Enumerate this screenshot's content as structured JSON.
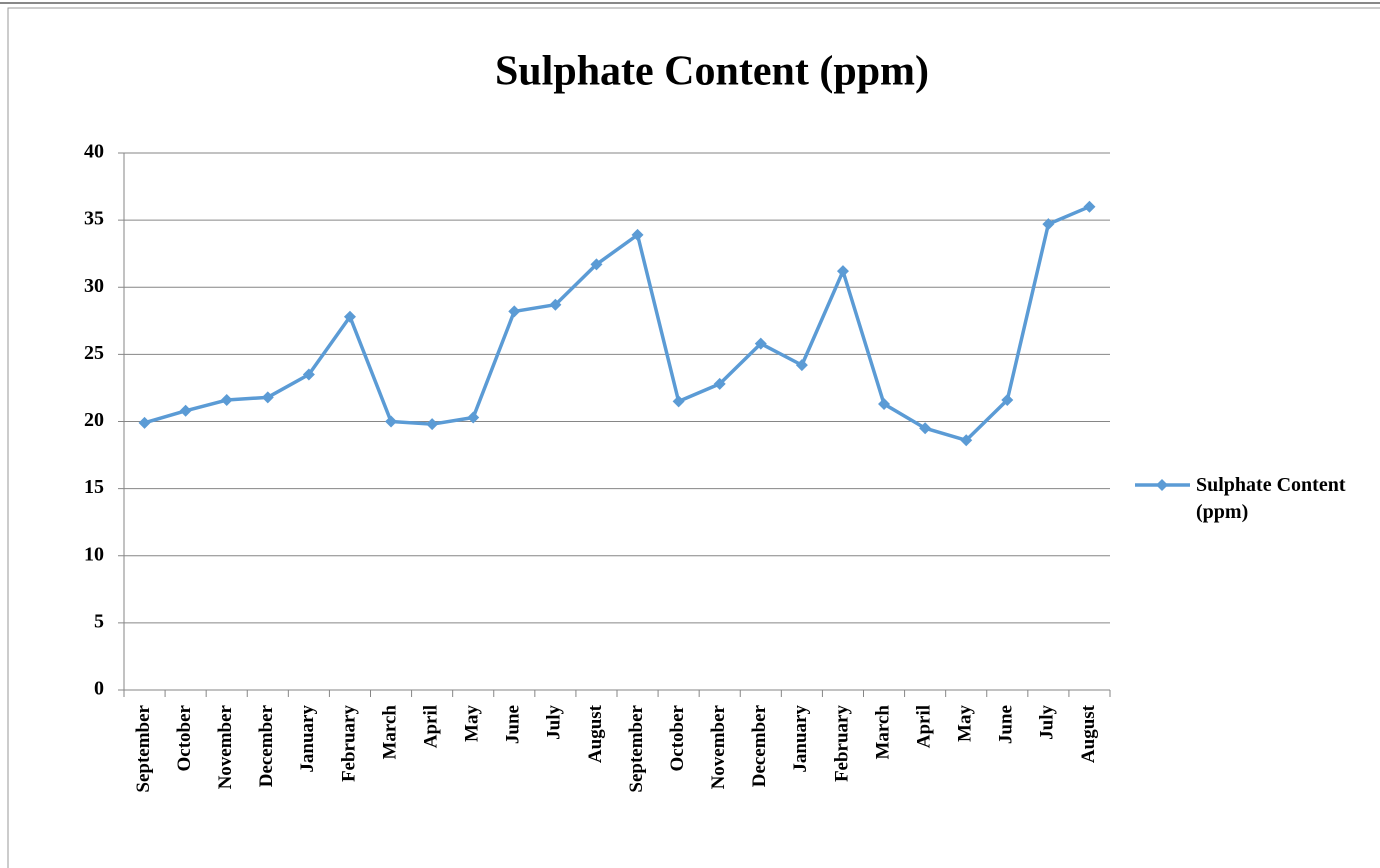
{
  "chart_data": {
    "type": "line",
    "title": "Sulphate Content (ppm)",
    "categories": [
      "September",
      "October",
      "November",
      "December",
      "January",
      "February",
      "March",
      "April",
      "May",
      "June",
      "July",
      "August",
      "September",
      "October",
      "November",
      "December",
      "January",
      "February",
      "March",
      "April",
      "May",
      "June",
      "July",
      "August"
    ],
    "series": [
      {
        "name": "Sulphate Content (ppm)",
        "color": "#5b9bd5",
        "values": [
          19.9,
          20.8,
          21.6,
          21.8,
          23.5,
          27.8,
          20.0,
          19.8,
          20.3,
          28.2,
          28.7,
          31.7,
          33.9,
          21.5,
          22.8,
          25.8,
          24.2,
          31.2,
          21.3,
          19.5,
          18.6,
          21.6,
          34.7,
          36.0
        ]
      }
    ],
    "ylim": [
      0,
      40
    ],
    "yticks": [
      0,
      5,
      10,
      15,
      20,
      25,
      30,
      35,
      40
    ],
    "grid": true,
    "legend": "right"
  }
}
